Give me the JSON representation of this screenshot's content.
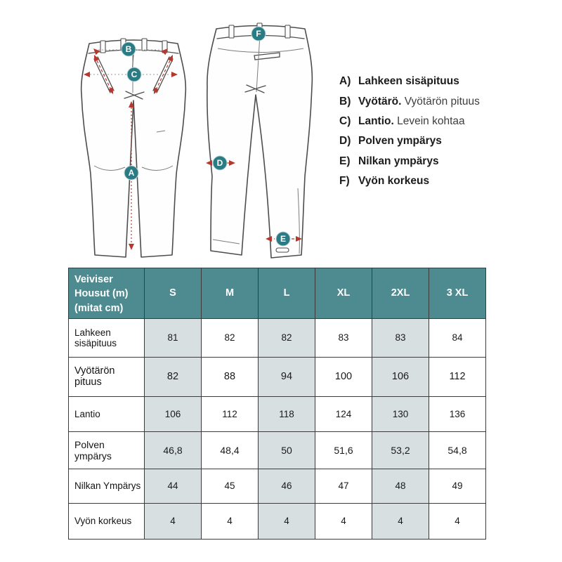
{
  "colors": {
    "header_teal": "#4e8b91",
    "marker_teal": "#2a7b83",
    "arrow_red": "#b5372e",
    "shaded_column": "#d8dfe1",
    "border_dark": "#3b3b3b",
    "line_art": "#4d4d4d"
  },
  "diagram": {
    "markers": {
      "a": "A",
      "b": "B",
      "c": "C",
      "d": "D",
      "e": "E",
      "f": "F"
    },
    "legend": [
      {
        "letter": "A)",
        "bold": "Lahkeen sisäpituus",
        "regular": ""
      },
      {
        "letter": "B)",
        "bold": "Vyötärö.",
        "regular": "Vyötärön pituus"
      },
      {
        "letter": "C)",
        "bold": "Lantio.",
        "regular": "Levein kohtaa"
      },
      {
        "letter": "D)",
        "bold": "Polven ympärys",
        "regular": ""
      },
      {
        "letter": "E)",
        "bold": "Nilkan ympärys",
        "regular": ""
      },
      {
        "letter": "F)",
        "bold": "Vyön korkeus",
        "regular": ""
      }
    ]
  },
  "table": {
    "corner_lines": [
      "Veiviser",
      "Housut (m)",
      "(mitat cm)"
    ],
    "columns": [
      "S",
      "M",
      "L",
      "XL",
      "2XL",
      "3 XL"
    ],
    "rows": [
      {
        "label": "Lahkeen sisäpituus",
        "values": [
          "81",
          "82",
          "82",
          "83",
          "83",
          "84"
        ]
      },
      {
        "label": "Vyötärön pituus",
        "values": [
          "82",
          "88",
          "94",
          "100",
          "106",
          "112"
        ]
      },
      {
        "label": "Lantio",
        "values": [
          "106",
          "112",
          "118",
          "124",
          "130",
          "136"
        ]
      },
      {
        "label": "Polven ympärys",
        "values": [
          "46,8",
          "48,4",
          "50",
          "51,6",
          "53,2",
          "54,8"
        ]
      },
      {
        "label": "Nilkan Ympärys",
        "values": [
          "44",
          "45",
          "46",
          "47",
          "48",
          "49"
        ]
      },
      {
        "label": "Vyön korkeus",
        "values": [
          "4",
          "4",
          "4",
          "4",
          "4",
          "4"
        ]
      }
    ]
  }
}
